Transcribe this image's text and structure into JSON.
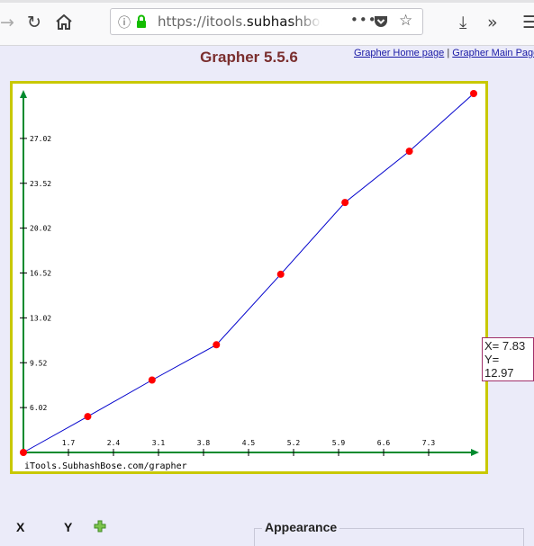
{
  "browser": {
    "url_prefix": "https://itools.",
    "url_domain": "subhashbos",
    "more_label": "•••"
  },
  "page": {
    "title": "Grapher 5.5.6",
    "link_home": "Grapher Home page",
    "link_separator": "|",
    "link_main": "Grapher Main Page"
  },
  "readout": {
    "x": "X= 7.83",
    "y": "Y= 12.97"
  },
  "table": {
    "col_x": "X",
    "col_y": "Y"
  },
  "appearance": {
    "legend": "Appearance"
  },
  "colors": {
    "line": "#0000cc",
    "point": "#ff0000",
    "axis": "#008a2e",
    "frame": "#c8c800"
  },
  "chart_data": {
    "type": "line",
    "watermark": "iTools.SubhashBose.com/grapher",
    "xlim": [
      1.0,
      8.0
    ],
    "ylim": [
      2.52,
      30.52
    ],
    "x_ticks": [
      "1.7",
      "2.4",
      "3.1",
      "3.8",
      "4.5",
      "5.2",
      "5.9",
      "6.6",
      "7.3"
    ],
    "y_ticks": [
      "6.02",
      "9.52",
      "13.02",
      "16.52",
      "20.02",
      "23.52",
      "27.02"
    ],
    "series": [
      {
        "x": [
          1.0,
          2.0,
          3.0,
          4.0,
          5.0,
          6.0,
          7.0,
          8.0
        ],
        "y": [
          2.52,
          5.32,
          8.17,
          10.92,
          16.42,
          22.02,
          26.02,
          30.52
        ]
      }
    ]
  }
}
